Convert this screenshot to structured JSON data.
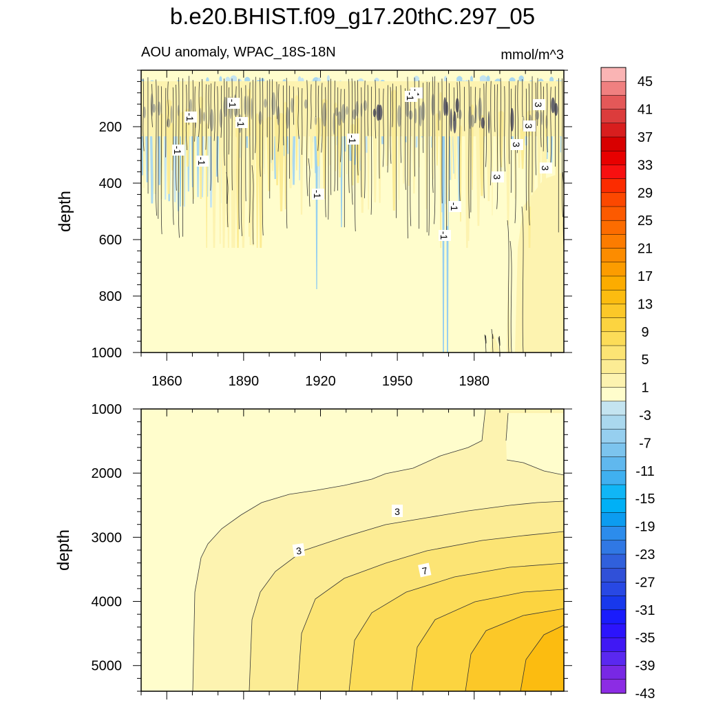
{
  "chart_data": {
    "type": "contour",
    "title": "b.e20.BHIST.f09_g17.20thC.297_05",
    "subtitle_left": "AOU anomaly, WPAC_18S-18N",
    "subtitle_right": "mmol/m^3",
    "x": {
      "range": [
        1850,
        2015
      ],
      "ticks": [
        1860,
        1890,
        1920,
        1950,
        1980
      ]
    },
    "top_panel": {
      "ylabel": "depth",
      "ylim": [
        0,
        1000
      ],
      "reversed": true,
      "yticks": [
        200,
        400,
        600,
        800,
        1000
      ],
      "contour_labels": [
        "-1",
        "-1",
        "-1",
        "-1",
        "-1",
        "-1",
        "-1",
        "-1",
        "-1",
        "-1",
        "-1",
        "3",
        "3",
        "3",
        "3",
        "3"
      ]
    },
    "bottom_panel": {
      "ylabel": "depth",
      "ylim": [
        1000,
        5400
      ],
      "reversed": true,
      "yticks": [
        1000,
        2000,
        3000,
        4000,
        5000
      ],
      "contour_labels": [
        "3",
        "3",
        "7"
      ]
    },
    "colorbar": {
      "tick_labels": [
        "45",
        "41",
        "37",
        "33",
        "29",
        "25",
        "21",
        "17",
        "13",
        "9",
        "5",
        "1",
        "-3",
        "-7",
        "-11",
        "-15",
        "-19",
        "-23",
        "-27",
        "-31",
        "-35",
        "-39",
        "-43"
      ],
      "colors": [
        "#fab4b4",
        "#f08080",
        "#e45858",
        "#dc3c3c",
        "#d81e1e",
        "#d80000",
        "#e80000",
        "#f81010",
        "#fc2c00",
        "#fc4800",
        "#fc5a00",
        "#fc6c00",
        "#fc7c00",
        "#fc8c00",
        "#fc9c00",
        "#fcac00",
        "#fcbc10",
        "#fcc828",
        "#fcd440",
        "#fcdc58",
        "#fce474",
        "#fcec94",
        "#fdf3b0",
        "#fffdcc",
        "#c4e4f0",
        "#aad8ee",
        "#96cfef",
        "#7cc4ee",
        "#60b8ee",
        "#40b0f0",
        "#10b6f6",
        "#00b0f6",
        "#0c9cf0",
        "#2c8cec",
        "#3078e4",
        "#3060dc",
        "#3050d8",
        "#2848e4",
        "#1838ec",
        "#1a1cfc",
        "#2c14fc",
        "#4018f4",
        "#5a28f0",
        "#7828e4",
        "#8c2ce4"
      ]
    }
  }
}
